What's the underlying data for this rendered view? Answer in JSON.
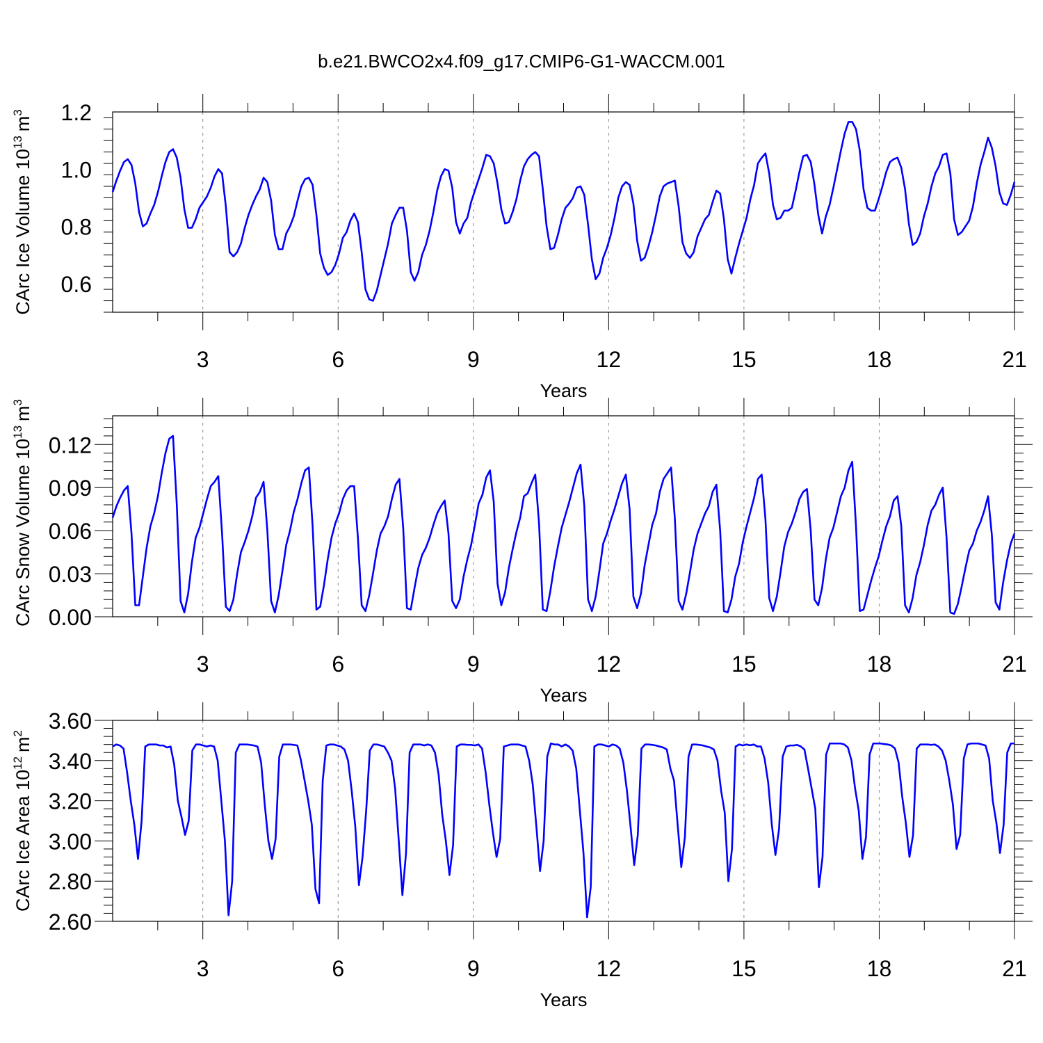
{
  "title": "b.e21.BWCO2x4.f09_g17.CMIP6-G1-WACCM.001",
  "line_color": "#0000ff",
  "chart_data": [
    {
      "type": "line",
      "xlabel": "Years",
      "ylabel": {
        "text": "CArc Ice Volume 10",
        "exponent": "13",
        "unit": "m",
        "unit_exponent": "3"
      },
      "xlim": [
        1,
        21
      ],
      "ylim": [
        0.5,
        1.2
      ],
      "x_ticks": [
        "3",
        "6",
        "9",
        "12",
        "15",
        "18",
        "21"
      ],
      "y_ticks": [
        "0.6",
        "0.8",
        "1.0",
        "1.2"
      ],
      "y_tick_values": [
        0.6,
        0.8,
        1.0,
        1.2
      ],
      "series": [
        {
          "values": [
            0.92,
            0.96,
            0.995,
            1.025,
            1.035,
            1.015,
            0.95,
            0.85,
            0.8,
            0.81,
            0.845,
            0.875,
            0.92,
            0.975,
            1.025,
            1.06,
            1.07,
            1.04,
            0.97,
            0.86,
            0.795,
            0.795,
            0.825,
            0.865,
            0.885,
            0.905,
            0.935,
            0.975,
            1.0,
            0.985,
            0.87,
            0.71,
            0.695,
            0.71,
            0.74,
            0.795,
            0.84,
            0.875,
            0.905,
            0.93,
            0.97,
            0.955,
            0.89,
            0.77,
            0.72,
            0.72,
            0.775,
            0.8,
            0.835,
            0.89,
            0.94,
            0.965,
            0.97,
            0.945,
            0.84,
            0.705,
            0.655,
            0.63,
            0.64,
            0.665,
            0.705,
            0.76,
            0.78,
            0.82,
            0.845,
            0.815,
            0.71,
            0.58,
            0.545,
            0.54,
            0.575,
            0.63,
            0.685,
            0.74,
            0.81,
            0.84,
            0.865,
            0.865,
            0.785,
            0.64,
            0.61,
            0.64,
            0.7,
            0.735,
            0.785,
            0.85,
            0.925,
            0.975,
            1.0,
            0.995,
            0.935,
            0.815,
            0.775,
            0.81,
            0.83,
            0.885,
            0.925,
            0.965,
            1.005,
            1.05,
            1.045,
            1.02,
            0.95,
            0.86,
            0.81,
            0.815,
            0.85,
            0.895,
            0.96,
            1.01,
            1.035,
            1.05,
            1.06,
            1.045,
            0.93,
            0.8,
            0.72,
            0.725,
            0.77,
            0.825,
            0.865,
            0.88,
            0.9,
            0.935,
            0.94,
            0.91,
            0.805,
            0.685,
            0.615,
            0.635,
            0.69,
            0.725,
            0.77,
            0.83,
            0.9,
            0.94,
            0.955,
            0.945,
            0.88,
            0.75,
            0.68,
            0.69,
            0.73,
            0.78,
            0.84,
            0.905,
            0.94,
            0.95,
            0.955,
            0.96,
            0.87,
            0.745,
            0.705,
            0.69,
            0.71,
            0.765,
            0.795,
            0.825,
            0.84,
            0.885,
            0.925,
            0.915,
            0.825,
            0.685,
            0.635,
            0.69,
            0.74,
            0.785,
            0.83,
            0.895,
            0.945,
            1.02,
            1.04,
            1.055,
            0.985,
            0.875,
            0.825,
            0.83,
            0.855,
            0.855,
            0.865,
            0.925,
            0.99,
            1.045,
            1.05,
            1.025,
            0.945,
            0.84,
            0.775,
            0.835,
            0.875,
            0.935,
            1.0,
            1.065,
            1.125,
            1.165,
            1.165,
            1.14,
            1.065,
            0.93,
            0.865,
            0.855,
            0.855,
            0.895,
            0.94,
            0.99,
            1.025,
            1.035,
            1.04,
            1.005,
            0.93,
            0.81,
            0.735,
            0.745,
            0.775,
            0.835,
            0.88,
            0.94,
            0.985,
            1.01,
            1.05,
            1.055,
            0.985,
            0.825,
            0.77,
            0.78,
            0.8,
            0.82,
            0.87,
            0.95,
            1.015,
            1.06,
            1.11,
            1.075,
            1.01,
            0.92,
            0.88,
            0.875,
            0.91,
            0.955
          ]
        }
      ]
    },
    {
      "type": "line",
      "xlabel": "Years",
      "ylabel": {
        "text": "CArc Snow Volume 10",
        "exponent": "13",
        "unit": "m",
        "unit_exponent": "3"
      },
      "xlim": [
        1,
        21
      ],
      "ylim": [
        0.0,
        0.14
      ],
      "x_ticks": [
        "3",
        "6",
        "9",
        "12",
        "15",
        "18",
        "21"
      ],
      "y_ticks": [
        "0.00",
        "0.03",
        "0.06",
        "0.09",
        "0.12"
      ],
      "y_tick_values": [
        0.0,
        0.03,
        0.06,
        0.09,
        0.12
      ],
      "series": [
        {
          "values": [
            0.069,
            0.077,
            0.083,
            0.088,
            0.091,
            0.058,
            0.008,
            0.008,
            0.028,
            0.048,
            0.063,
            0.072,
            0.084,
            0.1,
            0.114,
            0.124,
            0.126,
            0.078,
            0.011,
            0.003,
            0.016,
            0.038,
            0.055,
            0.062,
            0.072,
            0.082,
            0.091,
            0.094,
            0.098,
            0.058,
            0.007,
            0.004,
            0.012,
            0.03,
            0.045,
            0.052,
            0.06,
            0.07,
            0.083,
            0.087,
            0.094,
            0.06,
            0.011,
            0.003,
            0.015,
            0.032,
            0.05,
            0.06,
            0.073,
            0.082,
            0.093,
            0.102,
            0.104,
            0.063,
            0.005,
            0.007,
            0.022,
            0.04,
            0.055,
            0.065,
            0.072,
            0.082,
            0.088,
            0.091,
            0.091,
            0.055,
            0.008,
            0.004,
            0.015,
            0.03,
            0.046,
            0.058,
            0.063,
            0.07,
            0.082,
            0.092,
            0.096,
            0.062,
            0.006,
            0.005,
            0.02,
            0.034,
            0.043,
            0.048,
            0.055,
            0.064,
            0.072,
            0.077,
            0.081,
            0.058,
            0.011,
            0.006,
            0.012,
            0.028,
            0.04,
            0.05,
            0.064,
            0.079,
            0.085,
            0.097,
            0.102,
            0.08,
            0.023,
            0.008,
            0.017,
            0.034,
            0.047,
            0.059,
            0.069,
            0.084,
            0.086,
            0.093,
            0.099,
            0.065,
            0.005,
            0.004,
            0.018,
            0.035,
            0.049,
            0.062,
            0.071,
            0.08,
            0.09,
            0.1,
            0.106,
            0.077,
            0.012,
            0.004,
            0.014,
            0.032,
            0.051,
            0.058,
            0.067,
            0.075,
            0.084,
            0.093,
            0.099,
            0.075,
            0.014,
            0.006,
            0.016,
            0.036,
            0.05,
            0.064,
            0.072,
            0.087,
            0.096,
            0.1,
            0.104,
            0.068,
            0.011,
            0.005,
            0.016,
            0.031,
            0.047,
            0.058,
            0.065,
            0.072,
            0.077,
            0.087,
            0.092,
            0.06,
            0.004,
            0.003,
            0.012,
            0.028,
            0.037,
            0.052,
            0.063,
            0.073,
            0.083,
            0.096,
            0.099,
            0.068,
            0.013,
            0.004,
            0.014,
            0.031,
            0.049,
            0.059,
            0.065,
            0.073,
            0.082,
            0.087,
            0.089,
            0.06,
            0.012,
            0.008,
            0.02,
            0.04,
            0.055,
            0.062,
            0.073,
            0.084,
            0.09,
            0.102,
            0.108,
            0.063,
            0.004,
            0.005,
            0.015,
            0.025,
            0.034,
            0.042,
            0.053,
            0.063,
            0.07,
            0.081,
            0.084,
            0.063,
            0.008,
            0.003,
            0.013,
            0.029,
            0.038,
            0.05,
            0.064,
            0.074,
            0.078,
            0.085,
            0.09,
            0.055,
            0.003,
            0.002,
            0.009,
            0.021,
            0.034,
            0.046,
            0.051,
            0.06,
            0.066,
            0.074,
            0.084,
            0.057,
            0.01,
            0.005,
            0.024,
            0.039,
            0.051,
            0.058
          ]
        }
      ]
    },
    {
      "type": "line",
      "xlabel": "Years",
      "ylabel": {
        "text": "CArc Ice Area 10",
        "exponent": "12",
        "unit": "m",
        "unit_exponent": "2"
      },
      "xlim": [
        1,
        21
      ],
      "ylim": [
        2.6,
        3.6
      ],
      "x_ticks": [
        "3",
        "6",
        "9",
        "12",
        "15",
        "18",
        "21"
      ],
      "y_ticks": [
        "2.60",
        "2.80",
        "3.00",
        "3.20",
        "3.40",
        "3.60"
      ],
      "y_tick_values": [
        2.6,
        2.8,
        3.0,
        3.2,
        3.4,
        3.6
      ],
      "series": [
        {
          "values": [
            3.47,
            3.48,
            3.475,
            3.46,
            3.34,
            3.2,
            3.08,
            2.91,
            3.1,
            3.47,
            3.48,
            3.48,
            3.48,
            3.475,
            3.475,
            3.465,
            3.47,
            3.38,
            3.2,
            3.12,
            3.03,
            3.1,
            3.45,
            3.48,
            3.48,
            3.475,
            3.47,
            3.475,
            3.47,
            3.4,
            3.2,
            3.0,
            2.63,
            2.8,
            3.44,
            3.48,
            3.48,
            3.48,
            3.478,
            3.475,
            3.47,
            3.39,
            3.18,
            3.0,
            2.91,
            3.01,
            3.42,
            3.48,
            3.48,
            3.48,
            3.478,
            3.475,
            3.4,
            3.3,
            3.2,
            3.08,
            2.76,
            2.69,
            3.3,
            3.475,
            3.48,
            3.48,
            3.475,
            3.47,
            3.455,
            3.4,
            3.25,
            3.07,
            2.78,
            2.92,
            3.15,
            3.45,
            3.48,
            3.48,
            3.475,
            3.47,
            3.44,
            3.4,
            3.26,
            3.0,
            2.73,
            2.94,
            3.44,
            3.48,
            3.48,
            3.48,
            3.475,
            3.48,
            3.475,
            3.44,
            3.33,
            3.13,
            3.0,
            2.83,
            2.98,
            3.47,
            3.48,
            3.48,
            3.478,
            3.478,
            3.475,
            3.48,
            3.46,
            3.34,
            3.18,
            3.04,
            2.92,
            3.01,
            3.47,
            3.475,
            3.48,
            3.48,
            3.48,
            3.475,
            3.47,
            3.4,
            3.28,
            3.07,
            2.85,
            3.0,
            3.42,
            3.485,
            3.48,
            3.48,
            3.47,
            3.48,
            3.47,
            3.45,
            3.36,
            3.15,
            2.94,
            2.62,
            2.77,
            3.47,
            3.48,
            3.48,
            3.475,
            3.47,
            3.48,
            3.475,
            3.46,
            3.39,
            3.25,
            3.07,
            2.88,
            3.03,
            3.46,
            3.48,
            3.48,
            3.478,
            3.475,
            3.47,
            3.465,
            3.455,
            3.36,
            3.3,
            3.08,
            2.87,
            3.02,
            3.42,
            3.48,
            3.48,
            3.478,
            3.475,
            3.47,
            3.465,
            3.455,
            3.4,
            3.25,
            3.14,
            2.8,
            2.96,
            3.47,
            3.48,
            3.475,
            3.48,
            3.476,
            3.48,
            3.47,
            3.47,
            3.41,
            3.29,
            3.08,
            2.93,
            3.06,
            3.42,
            3.47,
            3.475,
            3.475,
            3.478,
            3.47,
            3.455,
            3.36,
            3.26,
            3.16,
            2.77,
            2.92,
            3.43,
            3.485,
            3.485,
            3.485,
            3.485,
            3.48,
            3.465,
            3.4,
            3.26,
            3.15,
            2.91,
            3.02,
            3.43,
            3.485,
            3.485,
            3.485,
            3.482,
            3.48,
            3.475,
            3.46,
            3.39,
            3.22,
            3.09,
            2.92,
            3.03,
            3.46,
            3.48,
            3.48,
            3.48,
            3.478,
            3.48,
            3.47,
            3.45,
            3.4,
            3.3,
            3.18,
            2.96,
            3.03,
            3.41,
            3.48,
            3.485,
            3.485,
            3.485,
            3.48,
            3.475,
            3.41,
            3.2,
            3.09,
            2.94,
            3.08,
            3.44,
            3.485,
            3.485
          ]
        }
      ]
    }
  ]
}
